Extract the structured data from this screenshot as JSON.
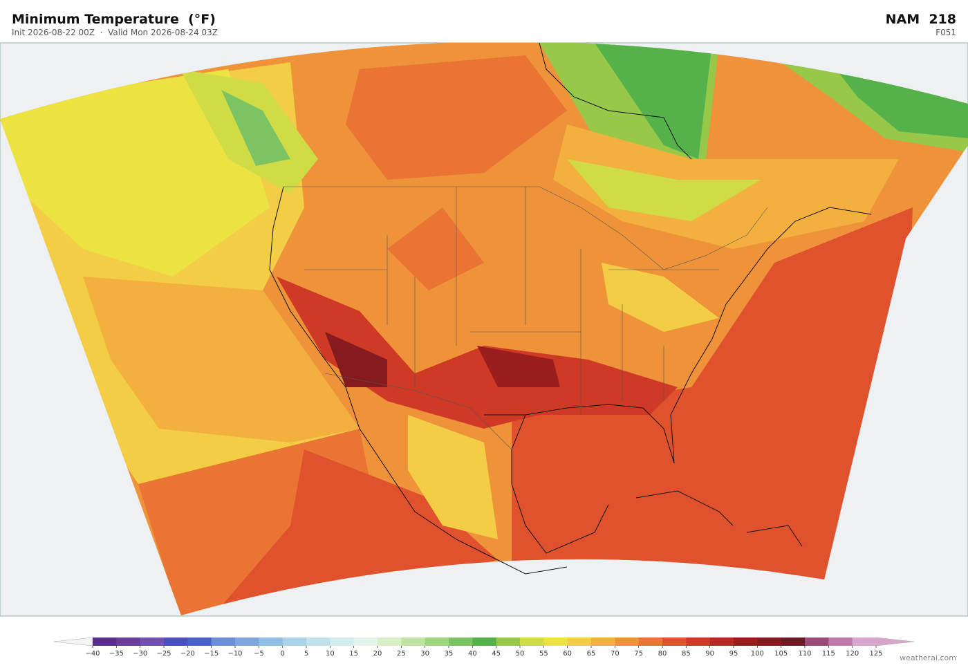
{
  "header": {
    "title": "Minimum Temperature  (°F)",
    "subtitle": "Init 2026-08-22 00Z  ·  Valid Mon 2026-08-24 03Z",
    "model": "NAM  218",
    "forecast_hour": "F051"
  },
  "colorbar": {
    "ticks": [
      {
        "value": -40,
        "label": "−40"
      },
      {
        "value": -35,
        "label": "−35"
      },
      {
        "value": -30,
        "label": "−30"
      },
      {
        "value": -25,
        "label": "−25"
      },
      {
        "value": -20,
        "label": "−20"
      },
      {
        "value": -15,
        "label": "−15"
      },
      {
        "value": -10,
        "label": "−10"
      },
      {
        "value": -5,
        "label": "−5"
      },
      0,
      5,
      10,
      15,
      20,
      25,
      30,
      35,
      40,
      45,
      50,
      55,
      60,
      65,
      70,
      75,
      80,
      85,
      90,
      95,
      100,
      105,
      110,
      115,
      120,
      125
    ],
    "colors": [
      "#5b2d8e",
      "#6a3d9a",
      "#7050b0",
      "#4a4fbf",
      "#4a63c8",
      "#6a8fd8",
      "#7fa6dc",
      "#8fbfe0",
      "#a9d1e8",
      "#c0e0ec",
      "#d4ecf0",
      "#e4f4ec",
      "#d8efc8",
      "#bfe3a0",
      "#9fd67f",
      "#7cc463",
      "#55b24b",
      "#97c84a",
      "#cfdc45",
      "#ece343",
      "#f3cd45",
      "#f3b03f",
      "#ef933a",
      "#ea7434",
      "#e0522d",
      "#cf3a26",
      "#b52a22",
      "#9b1e1e",
      "#851a1f",
      "#6e1a22",
      "#9c4a78",
      "#c07aaa",
      "#d8a6cc"
    ],
    "under_color": "#f4f4f4",
    "over_color": "#d8a6cc"
  },
  "footer": {
    "credit": "weatherai.com"
  }
}
